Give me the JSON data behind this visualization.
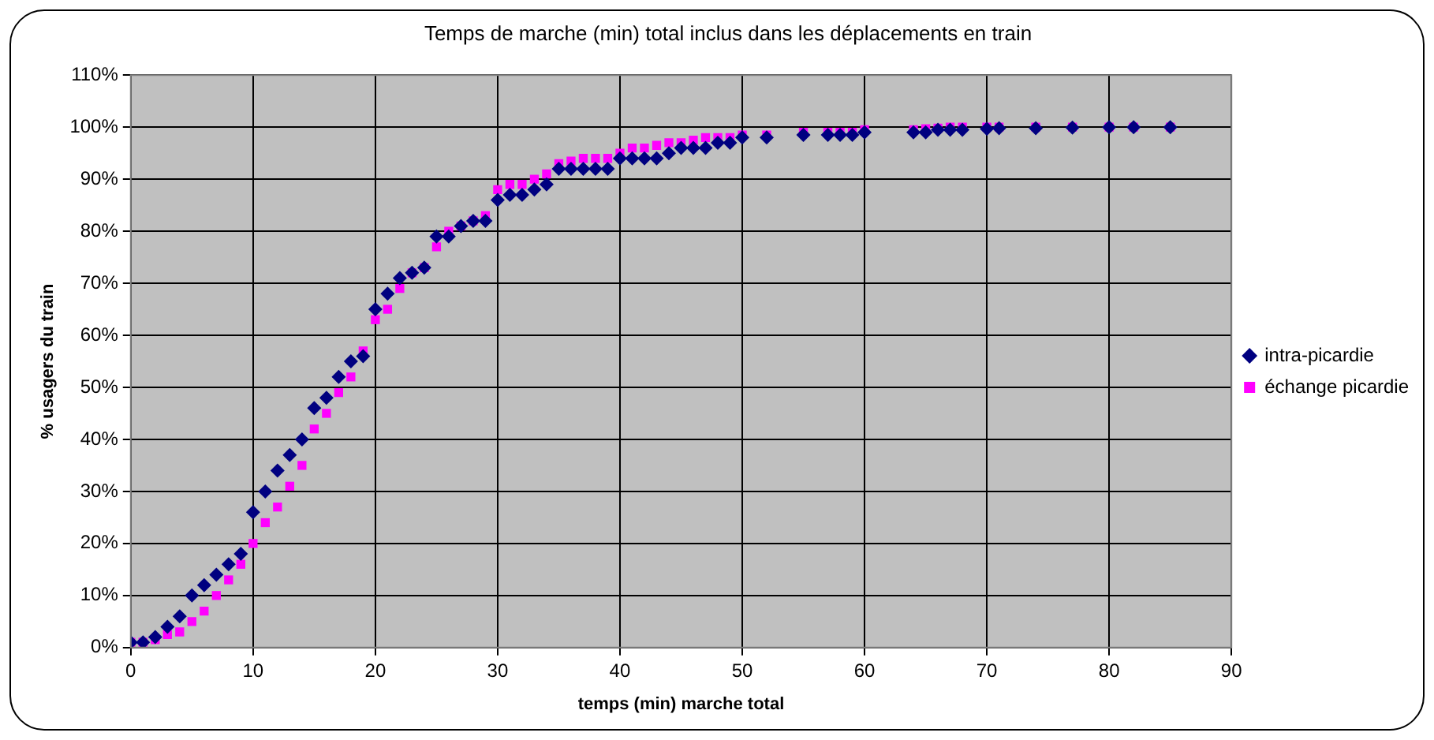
{
  "chart_data": {
    "type": "scatter",
    "title": "Temps de marche (min) total inclus dans les déplacements en train",
    "xlabel": "temps (min) marche total",
    "ylabel": "% usagers du train",
    "xlim": [
      0,
      90
    ],
    "xticks": [
      0,
      10,
      20,
      30,
      40,
      50,
      60,
      70,
      80,
      90
    ],
    "ylim": [
      0,
      110
    ],
    "yticks": [
      {
        "value": 0,
        "label": "0%"
      },
      {
        "value": 10,
        "label": "10%"
      },
      {
        "value": 20,
        "label": "20%"
      },
      {
        "value": 30,
        "label": "30%"
      },
      {
        "value": 40,
        "label": "40%"
      },
      {
        "value": 50,
        "label": "50%"
      },
      {
        "value": 60,
        "label": "60%"
      },
      {
        "value": 70,
        "label": "70%"
      },
      {
        "value": 80,
        "label": "80%"
      },
      {
        "value": 90,
        "label": "90%"
      },
      {
        "value": 100,
        "label": "100%"
      },
      {
        "value": 110,
        "label": "110%"
      }
    ],
    "grid": true,
    "legend": "right",
    "x": [
      0,
      1,
      2,
      3,
      4,
      5,
      6,
      7,
      8,
      9,
      10,
      11,
      12,
      13,
      14,
      15,
      16,
      17,
      18,
      19,
      20,
      21,
      22,
      23,
      24,
      25,
      26,
      27,
      28,
      29,
      30,
      31,
      32,
      33,
      34,
      35,
      36,
      37,
      38,
      39,
      40,
      41,
      42,
      43,
      44,
      45,
      46,
      47,
      48,
      49,
      50,
      52,
      55,
      57,
      58,
      59,
      60,
      64,
      65,
      66,
      67,
      68,
      70,
      71,
      74,
      77,
      80,
      82,
      85
    ],
    "series": [
      {
        "name": "intra-picardie",
        "color": "#000080",
        "marker": "diamond",
        "values": [
          1,
          1,
          2,
          4,
          6,
          10,
          12,
          14,
          16,
          18,
          26,
          30,
          34,
          37,
          40,
          46,
          48,
          52,
          55,
          56,
          65,
          68,
          71,
          72,
          73,
          79,
          79,
          81,
          82,
          82,
          86,
          87,
          87,
          88,
          89,
          92,
          92,
          92,
          92,
          92,
          94,
          94,
          94,
          94,
          95,
          96,
          96,
          96,
          97,
          97,
          98,
          98,
          98.5,
          98.5,
          98.5,
          98.5,
          99,
          99,
          99,
          99.5,
          99.5,
          99.5,
          99.7,
          99.8,
          99.8,
          99.9,
          100,
          100,
          100
        ]
      },
      {
        "name": "échange picardie",
        "color": "#ff00ff",
        "marker": "square",
        "values": [
          1,
          1,
          1.5,
          2.5,
          3,
          5,
          7,
          10,
          13,
          16,
          20,
          24,
          27,
          31,
          35,
          42,
          45,
          49,
          52,
          57,
          63,
          65,
          69,
          72,
          73,
          77,
          80,
          81,
          82,
          83,
          88,
          89,
          89,
          90,
          91,
          93,
          93.5,
          94,
          94,
          94,
          95,
          96,
          96,
          96.5,
          97,
          97,
          97.5,
          98,
          98,
          98,
          98.5,
          98.5,
          99,
          99,
          99,
          99,
          99.5,
          99.5,
          99.7,
          99.8,
          100,
          100,
          100,
          100,
          100,
          100,
          100,
          100,
          100
        ]
      }
    ]
  }
}
